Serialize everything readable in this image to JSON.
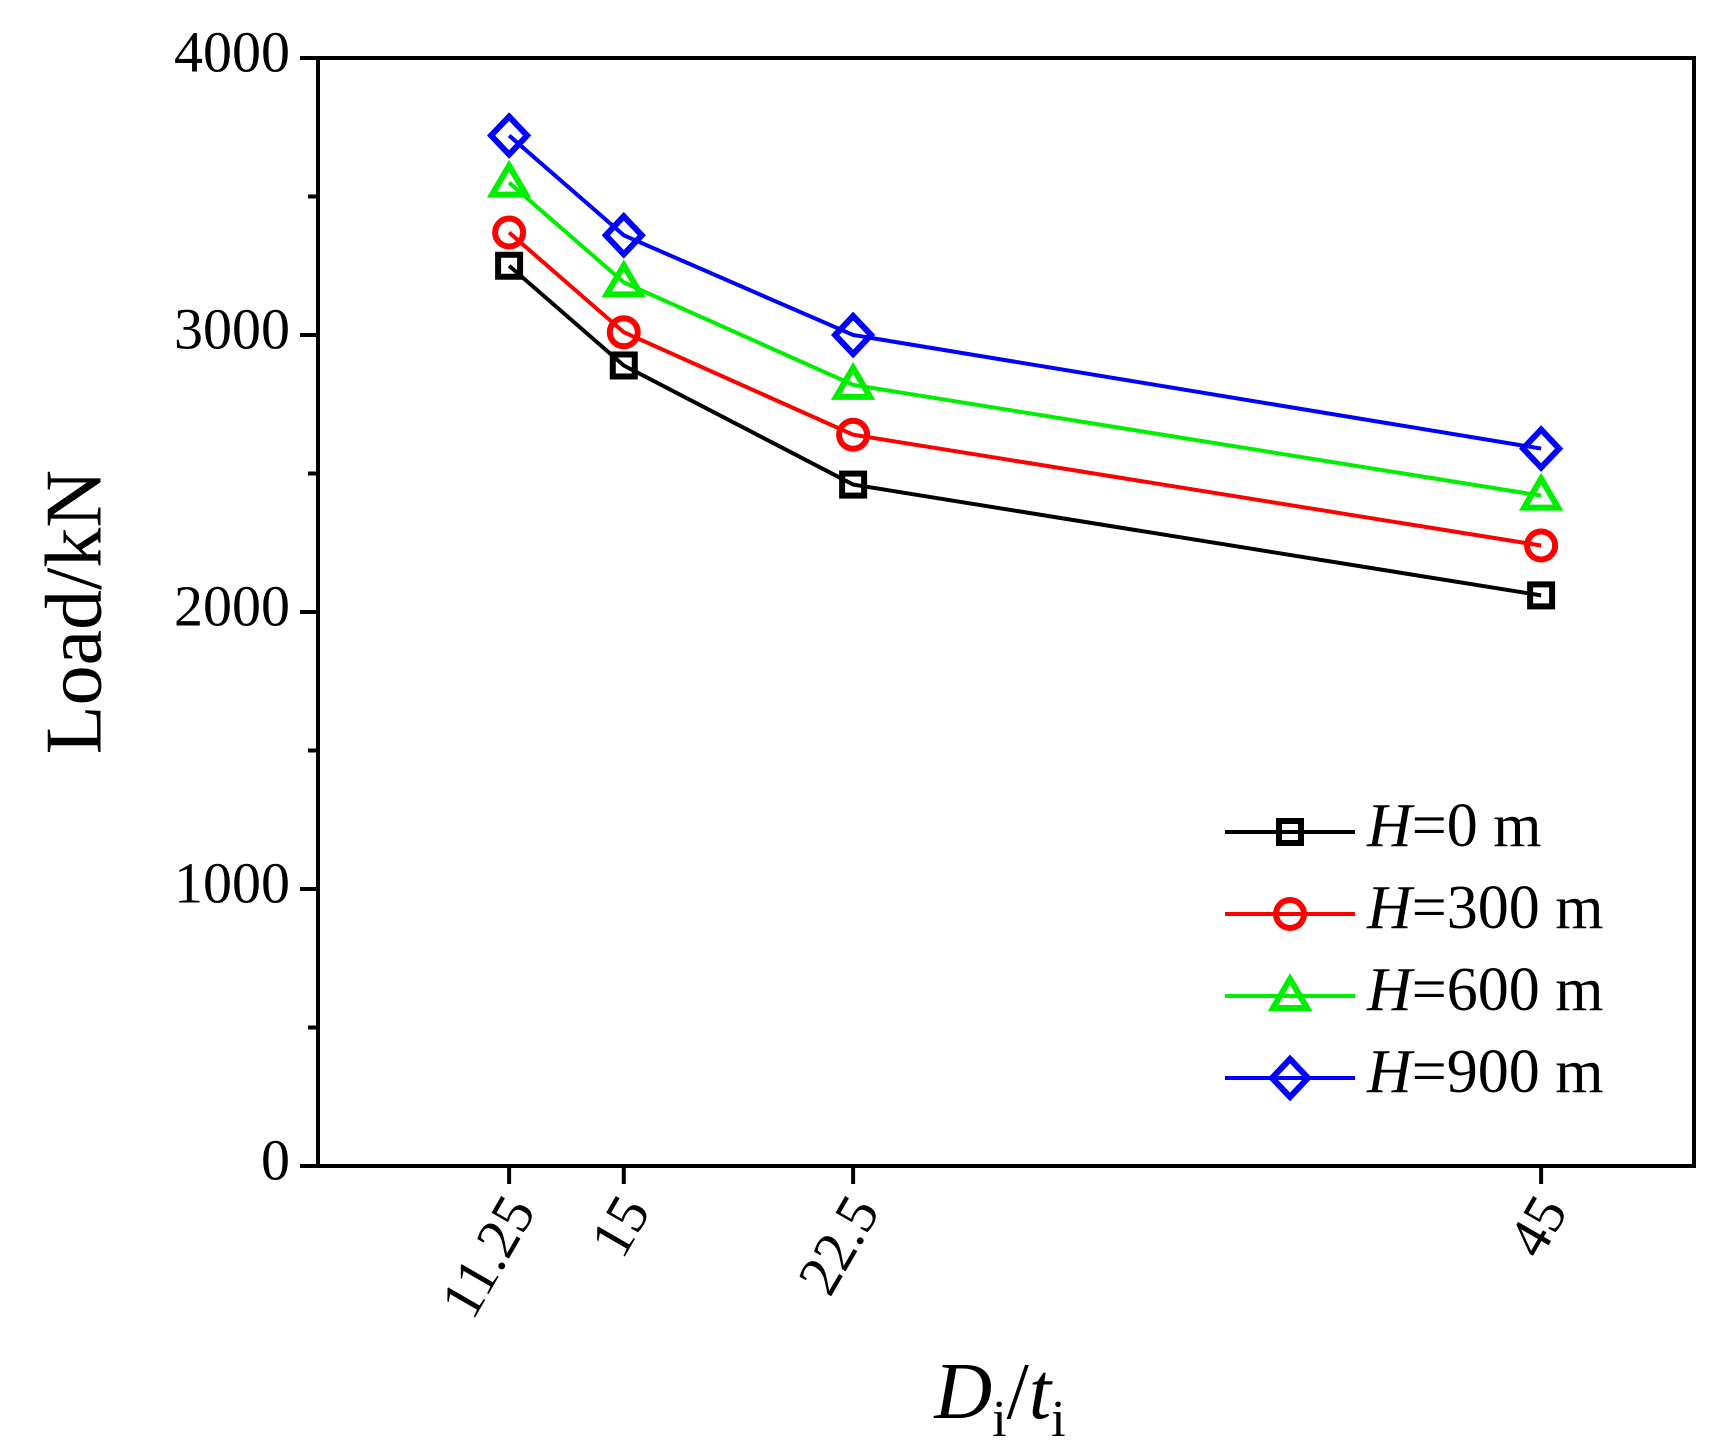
{
  "chart_data": {
    "type": "line",
    "title": "",
    "xlabel": {
      "main": "D",
      "sub1": "i",
      "slash": "/",
      "main2": "t",
      "sub2": "i"
    },
    "ylabel": "Load/kN",
    "x": [
      11.25,
      15,
      22.5,
      45
    ],
    "xlim": [
      5,
      50
    ],
    "ylim": [
      0,
      4000
    ],
    "x_tick_labels": [
      "11.25",
      "15",
      "22.5",
      "45"
    ],
    "y_ticks": [
      0,
      1000,
      2000,
      3000,
      4000
    ],
    "y_tick_labels": [
      "0",
      "1000",
      "2000",
      "3000",
      "4000"
    ],
    "y_minor_ticks": [
      500,
      1500,
      2500,
      3500
    ],
    "legend_position": "bottom-right",
    "series": [
      {
        "name": "H=0 m",
        "label_var": "H",
        "label_rest": "=0 m",
        "color": "#000000",
        "marker": "square",
        "values": [
          3250,
          2890,
          2460,
          2060
        ]
      },
      {
        "name": "H=300 m",
        "label_var": "H",
        "label_rest": "=300 m",
        "color": "#ff0000",
        "marker": "circle",
        "values": [
          3370,
          3010,
          2640,
          2240
        ]
      },
      {
        "name": "H=600 m",
        "label_var": "H",
        "label_rest": "=600 m",
        "color": "#00ee00",
        "marker": "triangle",
        "values": [
          3550,
          3190,
          2820,
          2420
        ]
      },
      {
        "name": "H=900 m",
        "label_var": "H",
        "label_rest": "=900 m",
        "color": "#0000ff",
        "marker": "diamond",
        "values": [
          3720,
          3360,
          3000,
          2590
        ]
      }
    ]
  }
}
